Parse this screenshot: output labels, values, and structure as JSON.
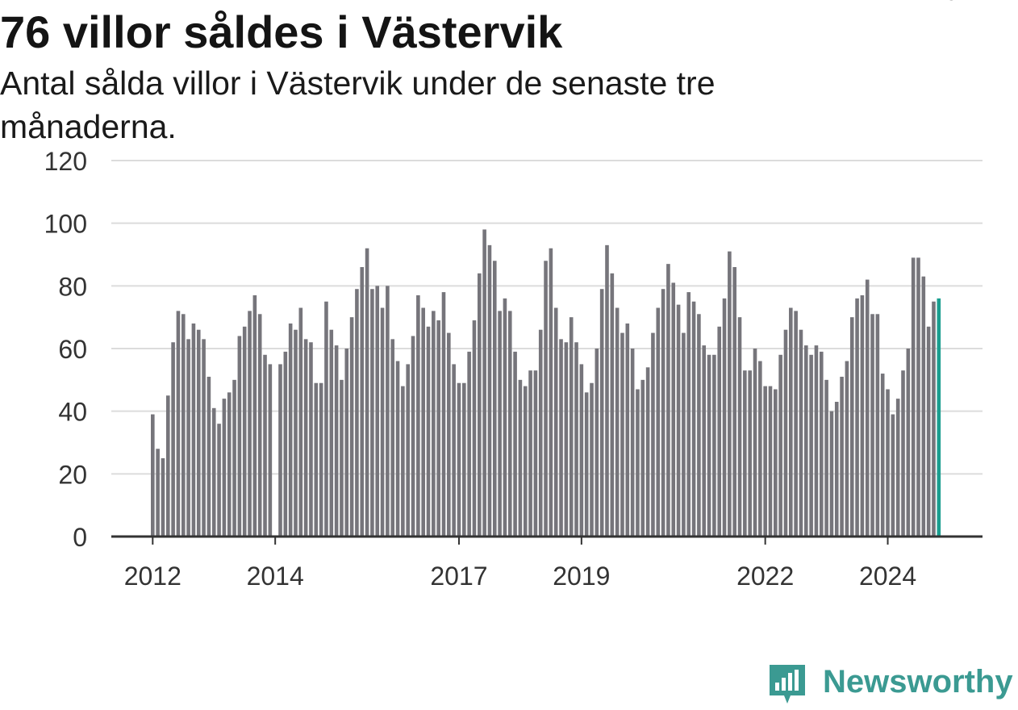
{
  "header": {
    "title": "76 villor såldes i Västervik",
    "subtitle": "Antal sålda villor i Västervik under de senaste tre månaderna."
  },
  "logo": {
    "text": "Newsworthy",
    "icon": "newsworthy-chart-bubble-icon"
  },
  "colors": {
    "bar": "#76757b",
    "highlight": "#1a9e8f",
    "grid": "#dcdcdc",
    "axis": "#333333",
    "logo": "#3b9a92"
  },
  "chart_data": {
    "type": "bar",
    "title": "76 villor såldes i Västervik",
    "ylim": [
      0,
      120
    ],
    "yticks": [
      "0",
      "20",
      "40",
      "60",
      "80",
      "100",
      "120"
    ],
    "xticks": [
      {
        "label": "2012",
        "month_index": 0
      },
      {
        "label": "2014",
        "month_index": 24
      },
      {
        "label": "2017",
        "month_index": 60
      },
      {
        "label": "2019",
        "month_index": 84
      },
      {
        "label": "2022",
        "month_index": 120
      },
      {
        "label": "2024",
        "month_index": 144
      }
    ],
    "start_month": "2012-01",
    "grid": true,
    "annotation": {
      "label": "76",
      "month_index": 155
    },
    "values": [
      39,
      28,
      25,
      45,
      62,
      72,
      71,
      63,
      68,
      66,
      63,
      51,
      41,
      36,
      44,
      46,
      50,
      64,
      67,
      72,
      77,
      71,
      58,
      55,
      null,
      55,
      59,
      68,
      66,
      73,
      63,
      62,
      49,
      49,
      75,
      66,
      61,
      50,
      60,
      70,
      79,
      86,
      92,
      79,
      80,
      73,
      80,
      63,
      56,
      48,
      55,
      64,
      77,
      73,
      67,
      72,
      69,
      78,
      65,
      55,
      49,
      49,
      59,
      69,
      84,
      98,
      93,
      88,
      72,
      76,
      72,
      59,
      50,
      48,
      53,
      53,
      66,
      88,
      92,
      73,
      63,
      62,
      70,
      62,
      55,
      46,
      49,
      60,
      79,
      93,
      84,
      73,
      65,
      68,
      60,
      47,
      50,
      54,
      65,
      73,
      79,
      87,
      81,
      74,
      65,
      78,
      75,
      71,
      61,
      58,
      58,
      67,
      76,
      91,
      86,
      70,
      53,
      53,
      60,
      56,
      48,
      48,
      47,
      58,
      66,
      73,
      72,
      66,
      61,
      58,
      61,
      59,
      50,
      40,
      43,
      51,
      56,
      70,
      76,
      77,
      82,
      71,
      71,
      52,
      47,
      39,
      44,
      53,
      60,
      89,
      89,
      83,
      67,
      75,
      76
    ]
  }
}
